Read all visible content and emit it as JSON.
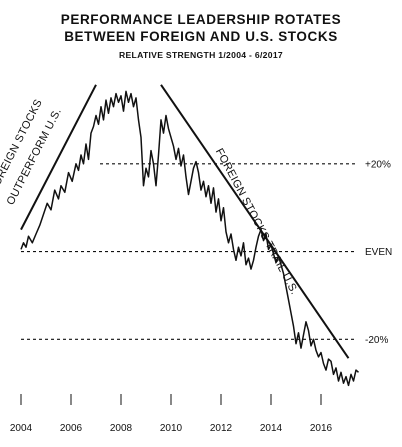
{
  "chart_data": {
    "type": "line",
    "title": [
      "PERFORMANCE LEADERSHIP ROTATES",
      "BETWEEN FOREIGN AND U.S. STOCKS"
    ],
    "subtitle": "RELATIVE STRENGTH 1/2004 - 6/2017",
    "xlabel": "",
    "ylabel": "",
    "x_ticks": [
      "2004",
      "2006",
      "2008",
      "2010",
      "2012",
      "2014",
      "2016"
    ],
    "xlim": [
      2004,
      2017.6
    ],
    "ylim": [
      -32,
      40
    ],
    "grid": false,
    "reference_lines": [
      {
        "label": "+20%",
        "value": 20
      },
      {
        "label": "EVEN",
        "value": 0
      },
      {
        "label": "-20%",
        "value": -20
      }
    ],
    "annotations": [
      {
        "text": [
          "FOREIGN STOCKS",
          "OUTPERFORM U.S."
        ]
      },
      {
        "text": [
          "FOREIGN STOCKS TRAIL U.S."
        ]
      }
    ],
    "trend_lines": [
      {
        "from": [
          2004.0,
          5.0
        ],
        "to": [
          2007.0,
          38.0
        ]
      },
      {
        "from": [
          2009.6,
          38.0
        ],
        "to": [
          2017.1,
          -24.3
        ]
      }
    ],
    "series": [
      {
        "x": [
          2004.0,
          2004.1,
          2004.2,
          2004.3,
          2004.45,
          2004.6,
          2004.75,
          2004.9,
          2005.05,
          2005.2,
          2005.35,
          2005.5,
          2005.6,
          2005.75,
          2005.9,
          2006.05,
          2006.2,
          2006.3,
          2006.4,
          2006.5,
          2006.6,
          2006.7,
          2006.8,
          2006.9,
          2007.0,
          2007.1,
          2007.2,
          2007.3,
          2007.4,
          2007.5,
          2007.6,
          2007.7,
          2007.8,
          2007.9,
          2008.0,
          2008.1,
          2008.2,
          2008.3,
          2008.4,
          2008.5,
          2008.6,
          2008.7,
          2008.8,
          2008.9,
          2009.0,
          2009.1,
          2009.2,
          2009.3,
          2009.4,
          2009.5,
          2009.6,
          2009.7,
          2009.8,
          2009.9,
          2010.0,
          2010.1,
          2010.2,
          2010.3,
          2010.4,
          2010.5,
          2010.6,
          2010.7,
          2010.8,
          2010.9,
          2011.0,
          2011.1,
          2011.2,
          2011.3,
          2011.4,
          2011.5,
          2011.6,
          2011.7,
          2011.8,
          2011.9,
          2012.0,
          2012.1,
          2012.2,
          2012.3,
          2012.4,
          2012.5,
          2012.6,
          2012.7,
          2012.8,
          2012.9,
          2013.0,
          2013.1,
          2013.2,
          2013.3,
          2013.4,
          2013.5,
          2013.6,
          2013.7,
          2013.8,
          2013.9,
          2014.0,
          2014.1,
          2014.2,
          2014.3,
          2014.4,
          2014.5,
          2014.6,
          2014.7,
          2014.8,
          2014.9,
          2015.0,
          2015.1,
          2015.2,
          2015.3,
          2015.4,
          2015.5,
          2015.6,
          2015.7,
          2015.8,
          2015.9,
          2016.0,
          2016.1,
          2016.2,
          2016.3,
          2016.4,
          2016.5,
          2016.6,
          2016.7,
          2016.8,
          2016.9,
          2017.0,
          2017.1,
          2017.2,
          2017.3,
          2017.4,
          2017.5
        ],
        "values": [
          0.5,
          2.0,
          1.0,
          3.5,
          2.0,
          4.0,
          6.0,
          8.5,
          11.0,
          9.5,
          14.0,
          12.0,
          15.0,
          13.5,
          18.0,
          16.0,
          20.0,
          18.5,
          22.0,
          20.0,
          24.5,
          21.0,
          27.0,
          28.5,
          31.0,
          29.0,
          33.0,
          30.0,
          34.5,
          31.5,
          35.0,
          33.0,
          36.0,
          34.0,
          35.5,
          32.0,
          36.5,
          34.0,
          36.0,
          33.0,
          35.0,
          30.0,
          26.0,
          15.0,
          19.0,
          17.0,
          23.0,
          20.0,
          15.0,
          22.0,
          30.0,
          27.0,
          31.0,
          28.0,
          26.0,
          24.0,
          21.0,
          23.5,
          19.5,
          22.0,
          17.0,
          13.0,
          16.0,
          19.0,
          20.5,
          18.0,
          14.0,
          16.0,
          12.5,
          15.0,
          11.0,
          14.5,
          9.0,
          12.0,
          7.0,
          10.0,
          4.5,
          2.0,
          4.0,
          0.5,
          -2.0,
          1.0,
          -1.0,
          2.0,
          -3.0,
          -1.5,
          -4.0,
          -2.0,
          1.0,
          3.5,
          5.0,
          2.5,
          4.0,
          0.5,
          1.5,
          -0.5,
          -2.5,
          -1.0,
          -3.0,
          -5.0,
          -8.0,
          -11.0,
          -14.0,
          -17.0,
          -21.0,
          -18.5,
          -22.0,
          -19.0,
          -16.0,
          -18.0,
          -21.5,
          -20.0,
          -22.5,
          -24.0,
          -23.0,
          -25.5,
          -27.0,
          -24.5,
          -25.0,
          -28.0,
          -26.5,
          -29.5,
          -27.5,
          -30.0,
          -28.5,
          -30.5,
          -28.0,
          -29.5,
          -27.0,
          -27.5
        ]
      }
    ]
  }
}
